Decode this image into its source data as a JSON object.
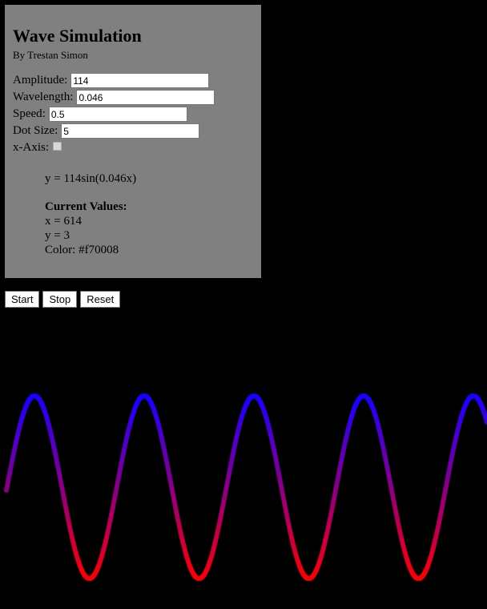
{
  "panel": {
    "title": "Wave Simulation",
    "byline": "By Trestan Simon",
    "fields": {
      "amplitude_label": "Amplitude:",
      "amplitude_value": "114",
      "wavelength_label": "Wavelength:",
      "wavelength_value": "0.046",
      "speed_label": "Speed:",
      "speed_value": "0.5",
      "dot_size_label": "Dot Size:",
      "dot_size_value": "5",
      "x_axis_label": "x-Axis:",
      "x_axis_checked": false
    },
    "equation": "y = 114sin(0.046x)",
    "current_heading": "Current Values:",
    "current_x": "x = 614",
    "current_y": "y = 3",
    "current_color": "Color: #f70008"
  },
  "buttons": {
    "start": "Start",
    "stop": "Stop",
    "reset": "Reset"
  },
  "colors": {
    "panel_bg": "#808080",
    "page_bg": "#000000",
    "wave_low": "#f70008",
    "wave_high": "#1a00ff"
  },
  "wave": {
    "amplitude": 114,
    "wavelength": 0.046,
    "dot_size": 5
  }
}
